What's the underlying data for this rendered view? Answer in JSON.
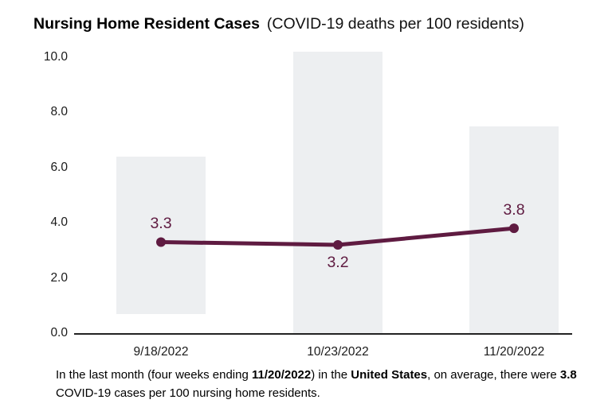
{
  "chart_data": {
    "type": "line",
    "title": "Nursing Home Resident Cases",
    "subtitle": "(COVID-19 deaths per 100 residents)",
    "categories": [
      "9/18/2022",
      "10/23/2022",
      "11/20/2022"
    ],
    "series": [
      {
        "values": [
          3.3,
          3.2,
          3.8
        ],
        "point_labels": [
          "3.3",
          "3.2",
          "3.8"
        ],
        "label_placement": [
          "above",
          "below",
          "above"
        ],
        "color": "#5f1b41"
      }
    ],
    "background_range_bars": {
      "color": "#edeff1",
      "ranges": [
        {
          "category": "9/18/2022",
          "low": 0.7,
          "high": 6.4
        },
        {
          "category": "10/23/2022",
          "low": 0.0,
          "high": 10.2
        },
        {
          "category": "11/20/2022",
          "low": 0.0,
          "high": 7.5
        }
      ]
    },
    "y_axis": {
      "ticks": [
        {
          "value": 0,
          "label": "0.0"
        },
        {
          "value": 2,
          "label": "2.0"
        },
        {
          "value": 4,
          "label": "4.0"
        },
        {
          "value": 6,
          "label": "6.0"
        },
        {
          "value": 8,
          "label": "8.0"
        },
        {
          "value": 10,
          "label": "10.0"
        }
      ],
      "ylim": [
        0,
        10.5
      ]
    },
    "grid": false,
    "legend": false,
    "axis_color": "#222222"
  },
  "footnote": {
    "segments": [
      {
        "text": "In the last month (four weeks ending ",
        "bold": false
      },
      {
        "text": "11/20/2022",
        "bold": true
      },
      {
        "text": ") in the ",
        "bold": false
      },
      {
        "text": "United States",
        "bold": true
      },
      {
        "text": ", on average, there were ",
        "bold": false
      },
      {
        "text": "3.8",
        "bold": true
      },
      {
        "text": " COVID-19 cases per 100 nursing home residents.",
        "bold": false
      }
    ]
  }
}
